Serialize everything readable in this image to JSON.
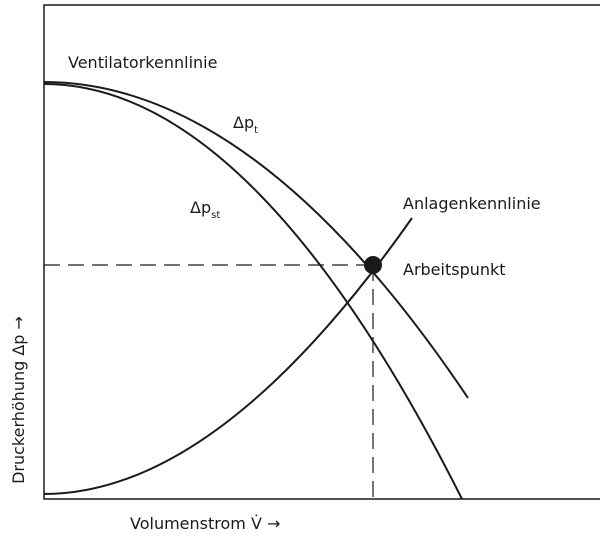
{
  "labels": {
    "fan_curve": "Ventilatorkennlinie",
    "total_pressure": {
      "symbol": "Δp",
      "sub": "t"
    },
    "static_pressure": {
      "symbol": "Δp",
      "sub": "st"
    },
    "system_curve": "Anlagenkennlinie",
    "operating_point": "Arbeitspunkt",
    "y_axis": "Druckerhöhung Δp  →",
    "x_axis": "Volumenstrom V̇  →"
  }
}
